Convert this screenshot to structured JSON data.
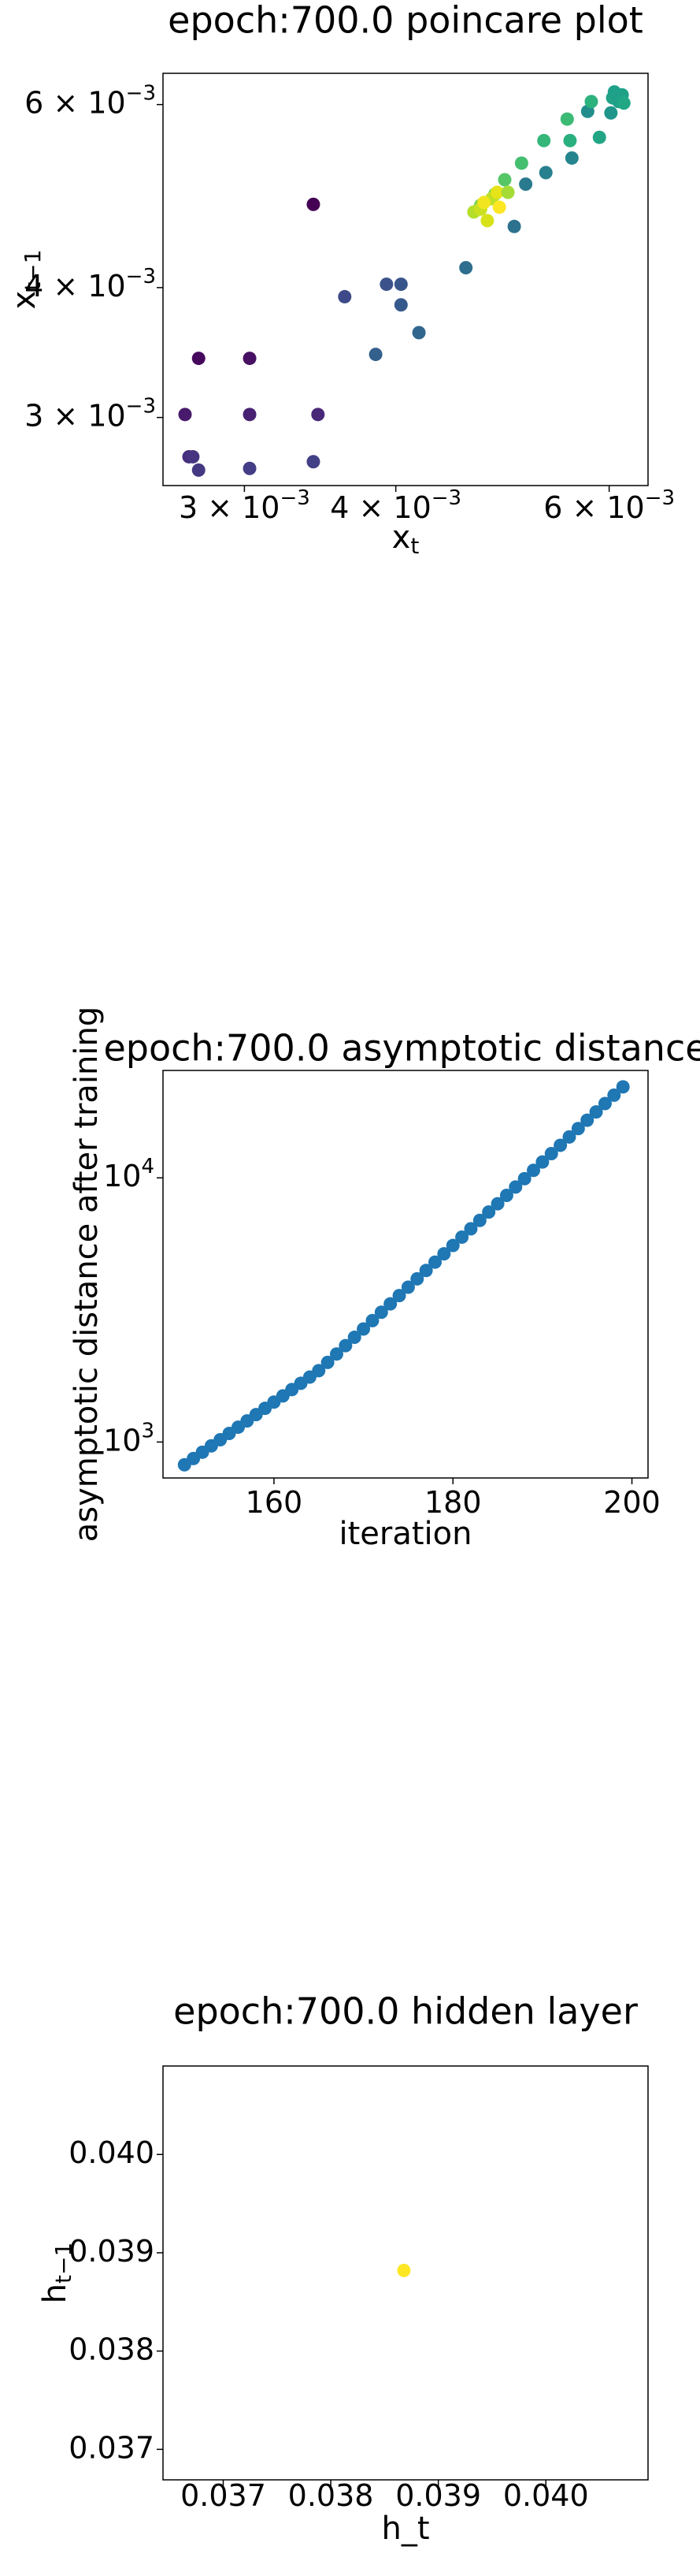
{
  "chart_data": [
    {
      "type": "scatter",
      "title": "epoch:700.0 poincare plot",
      "xlabel": "x",
      "xlabel_sub": "t",
      "ylabel": "x",
      "ylabel_sub": "t−1",
      "xscale": "log",
      "yscale": "log",
      "xlim": [
        0.00257,
        0.00646
      ],
      "ylim": [
        0.00258,
        0.00643
      ],
      "xticks": [
        {
          "value": 0.003,
          "label": "3 × 10",
          "exponent": "−3"
        },
        {
          "value": 0.004,
          "label": "4 × 10",
          "exponent": "−3"
        },
        {
          "value": 0.006,
          "label": "6 × 10",
          "exponent": "−3"
        }
      ],
      "yticks": [
        {
          "value": 0.003,
          "label": "3 × 10",
          "exponent": "−3"
        },
        {
          "value": 0.004,
          "label": "4 × 10",
          "exponent": "−3"
        },
        {
          "value": 0.006,
          "label": "6 × 10",
          "exponent": "−3"
        }
      ],
      "x": [
        0.00342,
        0.00275,
        0.00303,
        0.00268,
        0.00303,
        0.00345,
        0.0027,
        0.00272,
        0.00275,
        0.00303,
        0.00342,
        0.00363,
        0.00393,
        0.00404,
        0.00404,
        0.00385,
        0.00418,
        0.00457,
        0.00501,
        0.00512,
        0.00532,
        0.00559,
        0.00576,
        0.00602,
        0.00607,
        0.00589,
        0.00557,
        0.0053,
        0.00508,
        0.00492,
        0.00483,
        0.0047,
        0.00604,
        0.00611,
        0.00615,
        0.00617,
        0.00606,
        0.0058,
        0.00554,
        0.00464,
        0.0047,
        0.00476,
        0.0048,
        0.00485,
        0.00495,
        0.00487,
        0.00473
      ],
      "y": [
        0.00481,
        0.00342,
        0.00342,
        0.00302,
        0.00302,
        0.00302,
        0.00275,
        0.00275,
        0.00267,
        0.00268,
        0.00272,
        0.00392,
        0.00403,
        0.00403,
        0.00385,
        0.00345,
        0.00362,
        0.00418,
        0.00458,
        0.00503,
        0.00516,
        0.00533,
        0.00591,
        0.00589,
        0.00613,
        0.00558,
        0.00554,
        0.00554,
        0.00527,
        0.00508,
        0.00492,
        0.0048,
        0.00609,
        0.00604,
        0.00613,
        0.00602,
        0.00617,
        0.00604,
        0.00581,
        0.00473,
        0.00476,
        0.00464,
        0.00487,
        0.00494,
        0.00494,
        0.00478,
        0.00483
      ],
      "colors": [
        "#440154",
        "#46085c",
        "#471063",
        "#481a6c",
        "#482173",
        "#482878",
        "#472f7d",
        "#463480",
        "#453882",
        "#433e85",
        "#424086",
        "#3e4989",
        "#3b528b",
        "#39568c",
        "#375a8c",
        "#34608d",
        "#31668e",
        "#2e6e8e",
        "#2c728e",
        "#297a8e",
        "#27808e",
        "#25858e",
        "#228d8d",
        "#1f958b",
        "#1e9b8a",
        "#21a585",
        "#2ab07f",
        "#35b779",
        "#44bf70",
        "#56c667",
        "#6ccd5a",
        "#7ad151",
        "#20a386",
        "#1f9f88",
        "#1fa187",
        "#22a785",
        "#1fa088",
        "#2db27d",
        "#3bbb75",
        "#b5de2b",
        "#c8e020",
        "#d8e219",
        "#bddf26",
        "#e5e419",
        "#a5db36",
        "#fde725",
        "#f1e51d"
      ]
    },
    {
      "type": "scatter",
      "title": "epoch:700.0 asymptotic distance",
      "xlabel": "iteration",
      "ylabel": "asymptotic distance after training",
      "xscale": "linear",
      "yscale": "log",
      "xlim": [
        147.6,
        201.8
      ],
      "ylim": [
        731,
        25500
      ],
      "xticks": [
        160,
        180,
        200
      ],
      "yticks": [
        {
          "value": 1000,
          "label": "10",
          "exponent": "3"
        },
        {
          "value": 10000,
          "label": "10",
          "exponent": "4"
        }
      ],
      "color": "#1f77b4",
      "x": [
        150,
        151,
        152,
        153,
        154,
        155,
        156,
        157,
        158,
        159,
        160,
        161,
        162,
        163,
        164,
        165,
        166,
        167,
        168,
        169,
        170,
        171,
        172,
        173,
        174,
        175,
        176,
        177,
        178,
        179,
        180,
        181,
        182,
        183,
        184,
        185,
        186,
        187,
        188,
        189,
        190,
        191,
        192,
        193,
        194,
        195,
        196,
        197,
        198,
        199
      ],
      "y": [
        820,
        866,
        915,
        967,
        1020,
        1078,
        1138,
        1202,
        1270,
        1341,
        1416,
        1495,
        1579,
        1668,
        1761,
        1862,
        2002,
        2154,
        2316,
        2491,
        2679,
        2881,
        3099,
        3333,
        3584,
        3855,
        4146,
        4459,
        4796,
        5158,
        5546,
        5965,
        6416,
        6900,
        7421,
        7980,
        8583,
        9231,
        9927,
        10676,
        11482,
        12349,
        13281,
        14283,
        15361,
        16520,
        17767,
        19108,
        20550,
        22101
      ]
    },
    {
      "type": "scatter",
      "title": "epoch:700.0 hidden layer",
      "xlabel": "h_t",
      "ylabel": "h",
      "ylabel_sub": "t−1",
      "xscale": "linear",
      "yscale": "linear",
      "xlim": [
        0.03644,
        0.04095
      ],
      "ylim": [
        0.03669,
        0.0409
      ],
      "xticks": [
        0.037,
        0.038,
        0.039,
        {
          "value": 0.04,
          "label": "0.040"
        }
      ],
      "yticks": [
        0.037,
        0.038,
        0.039,
        {
          "value": 0.04,
          "label": "0.040"
        }
      ],
      "color": "#fde725",
      "x": [
        0.03868
      ],
      "y": [
        0.03882
      ]
    }
  ]
}
